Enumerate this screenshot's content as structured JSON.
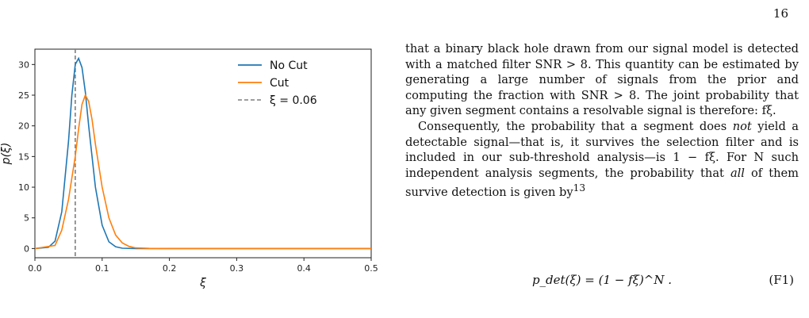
{
  "page": {
    "number": "16"
  },
  "figure": {
    "chart_data": {
      "type": "line",
      "xlabel": "ξ",
      "ylabel": "p(ξ)",
      "xlim": [
        0.0,
        0.5
      ],
      "ylim": [
        -1.5,
        32.5
      ],
      "x_ticks": [
        "0.0",
        "0.1",
        "0.2",
        "0.3",
        "0.4",
        "0.5"
      ],
      "y_ticks": [
        "0",
        "5",
        "10",
        "15",
        "20",
        "25",
        "30"
      ],
      "grid": false,
      "legend_position": "top-right",
      "series": [
        {
          "name": "No Cut",
          "color": "#1f77b4",
          "x": [
            0.0,
            0.02,
            0.03,
            0.04,
            0.05,
            0.055,
            0.06,
            0.065,
            0.07,
            0.075,
            0.08,
            0.09,
            0.1,
            0.11,
            0.12,
            0.13,
            0.15,
            0.2,
            0.3,
            0.4,
            0.5
          ],
          "y": [
            0.0,
            0.2,
            1.2,
            6.0,
            17.5,
            25.0,
            30.0,
            31.0,
            29.5,
            25.5,
            20.0,
            10.0,
            3.8,
            1.1,
            0.3,
            0.05,
            0.0,
            0.0,
            0.0,
            0.0,
            0.0
          ]
        },
        {
          "name": "Cut",
          "color": "#ff7f0e",
          "x": [
            0.0,
            0.03,
            0.04,
            0.05,
            0.055,
            0.06,
            0.065,
            0.07,
            0.075,
            0.08,
            0.085,
            0.09,
            0.1,
            0.11,
            0.12,
            0.13,
            0.14,
            0.15,
            0.17,
            0.2,
            0.3,
            0.4,
            0.5
          ],
          "y": [
            0.0,
            0.5,
            3.0,
            8.0,
            11.5,
            15.0,
            19.5,
            23.5,
            25.0,
            24.0,
            21.0,
            17.0,
            10.0,
            5.0,
            2.2,
            0.9,
            0.35,
            0.1,
            0.02,
            0.0,
            0.0,
            0.0,
            0.0
          ]
        }
      ],
      "vline": {
        "label": "ξ = 0.06",
        "x": 0.06,
        "color": "#7f7f7f",
        "style": "dashed"
      }
    }
  },
  "text": {
    "paragraph1": "that a binary black hole drawn from our signal model is detected with a matched filter SNR > 8. This quantity can be estimated by generating a large number of signals from the prior and computing the fraction with SNR > 8. The joint probability that any given segment contains a resolvable signal is therefore: fξ.",
    "paragraph2_a": "Consequently, the probability that a segment does ",
    "paragraph2_em1": "not",
    "paragraph2_b": " yield a detectable signal—that is, it survives the selection filter and is included in our sub-threshold analysis—is 1 − fξ. For N such independent analysis segments, the probability that ",
    "paragraph2_em2": "all",
    "paragraph2_c": " of them survive detection is given by",
    "footnote_ref": "13"
  },
  "equation": {
    "body": "p_det(ξ) = (1 − fξ)^N .",
    "number": "(F1)"
  }
}
